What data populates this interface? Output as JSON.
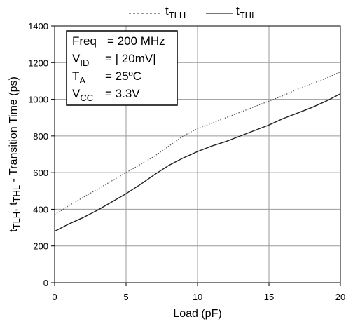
{
  "chart_data": {
    "type": "line",
    "xlabel": "Load (pF)",
    "ylabel": {
      "t1": "t",
      "s1": "TLH",
      "sep": ", ",
      "t2": "t",
      "s2": "THL",
      "rest": " - Transition Time (ps)"
    },
    "xlim": [
      0,
      20
    ],
    "ylim": [
      0,
      1400
    ],
    "xticks": [
      "0",
      "5",
      "10",
      "15",
      "20"
    ],
    "yticks": [
      "0",
      "200",
      "400",
      "600",
      "800",
      "1000",
      "1200",
      "1400"
    ],
    "grid": true,
    "legend_placement": "top",
    "series": [
      {
        "name": {
          "base": "t",
          "sub": "TLH"
        },
        "style": "dotted",
        "color": "#555555",
        "x": [
          0,
          1,
          2,
          3,
          4,
          5,
          6,
          7,
          8,
          9,
          10,
          11,
          12,
          13,
          14,
          15,
          16,
          17,
          18,
          19,
          20
        ],
        "y": [
          370,
          420,
          465,
          510,
          555,
          600,
          645,
          690,
          745,
          800,
          840,
          870,
          900,
          930,
          960,
          990,
          1020,
          1055,
          1085,
          1115,
          1150
        ]
      },
      {
        "name": {
          "base": "t",
          "sub": "THL"
        },
        "style": "solid",
        "color": "#222222",
        "x": [
          0,
          1,
          2,
          3,
          4,
          5,
          6,
          7,
          8,
          9,
          10,
          11,
          12,
          13,
          14,
          15,
          16,
          17,
          18,
          19,
          20
        ],
        "y": [
          280,
          320,
          355,
          395,
          440,
          485,
          535,
          590,
          640,
          680,
          715,
          745,
          770,
          800,
          830,
          860,
          895,
          925,
          955,
          990,
          1030
        ]
      }
    ],
    "annotation_box": [
      {
        "label": "Freq",
        "sub": "",
        "value": "= 200 MHz"
      },
      {
        "label": "V",
        "sub": "ID",
        "value": "= | 20mV|"
      },
      {
        "label": "T",
        "sub": "A",
        "value": "= 25ºC"
      },
      {
        "label": "V",
        "sub": "CC",
        "value": "= 3.3V"
      }
    ]
  }
}
